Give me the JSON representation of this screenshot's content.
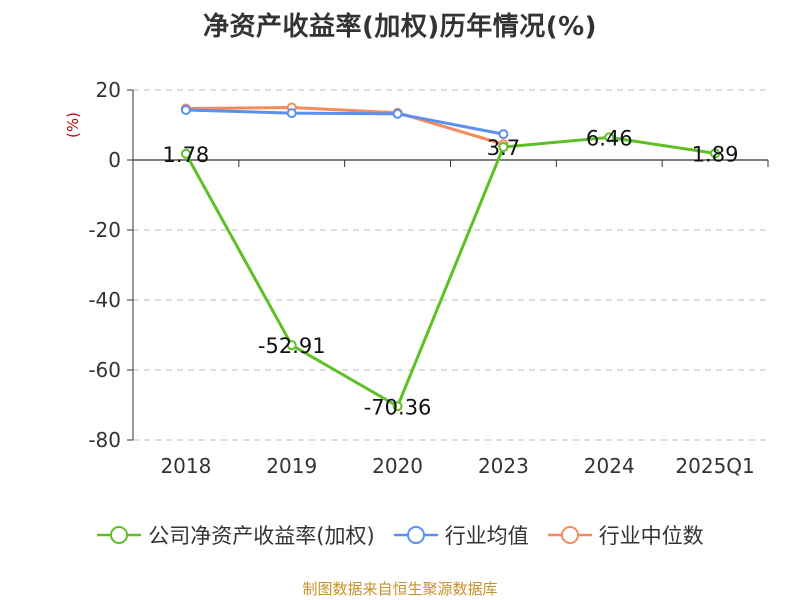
{
  "chart_data": {
    "type": "line",
    "title": "净资产收益率(加权)历年情况(%)",
    "ylabel": "(%)",
    "categories": [
      "2018",
      "2019",
      "2020",
      "2023",
      "2024",
      "2025Q1"
    ],
    "ylim": [
      -80,
      20
    ],
    "yticks": [
      20,
      0,
      -20,
      -40,
      -60,
      -80
    ],
    "grid": true,
    "legend_position": "bottom",
    "series": [
      {
        "name": "公司净资产收益率(加权)",
        "color": "#5ec026",
        "values": [
          1.78,
          -52.91,
          -70.36,
          3.7,
          6.46,
          1.89
        ],
        "labels": [
          "1.78",
          "-52.91",
          "-70.36",
          "3.7",
          "6.46",
          "1.89"
        ]
      },
      {
        "name": "行业均值",
        "color": "#5b8ff0",
        "values": [
          14.3,
          13.4,
          13.2,
          7.4,
          null,
          null
        ]
      },
      {
        "name": "行业中位数",
        "color": "#f58b5c",
        "values": [
          14.7,
          15.0,
          13.5,
          4.5,
          null,
          null
        ]
      }
    ]
  },
  "source_note": "制图数据来自恒生聚源数据库"
}
